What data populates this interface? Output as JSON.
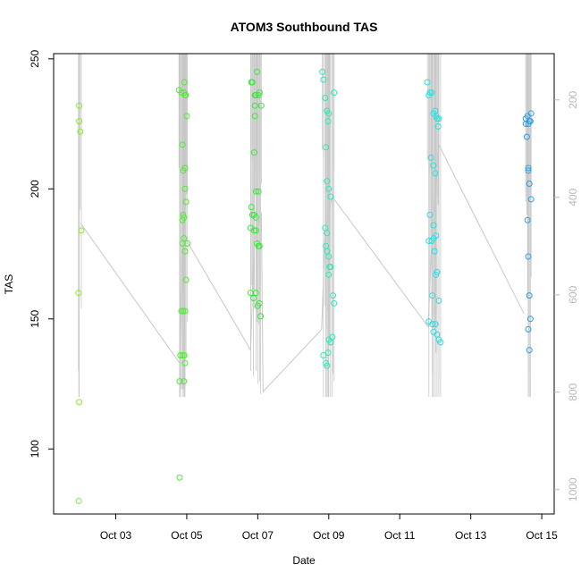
{
  "chart_data": {
    "type": "scatter",
    "title": "ATOM3 Southbound TAS",
    "xlabel": "Date",
    "ylabel": "TAS",
    "x_ticks": [
      "Oct 03",
      "Oct 05",
      "Oct 07",
      "Oct 09",
      "Oct 11",
      "Oct 13",
      "Oct 15"
    ],
    "x_tick_days": [
      3,
      5,
      7,
      9,
      11,
      13,
      15
    ],
    "xlim_days": [
      1.25,
      15.35
    ],
    "ylim": [
      75,
      252
    ],
    "y_ticks": [
      100,
      150,
      200,
      250
    ],
    "right_axis": {
      "ticks": [
        200,
        400,
        600,
        800,
        1000
      ],
      "range": [
        105,
        1050
      ],
      "inverted": true,
      "color": "#b9b9b9"
    },
    "grid": false,
    "legend": "none",
    "line_color": "#c8c8c8",
    "gradient_colors": [
      "#9be535",
      "#3ff03a",
      "#2ae8c8",
      "#2aa0e6"
    ],
    "series": [
      {
        "color": "#88ea30",
        "points": [
          [
            1.97,
            232
          ],
          [
            1.97,
            226
          ],
          [
            2.0,
            222
          ],
          [
            2.03,
            184
          ],
          [
            1.95,
            160
          ],
          [
            1.97,
            118
          ],
          [
            1.96,
            80
          ]
        ]
      },
      {
        "color": "#52ea35",
        "points": [
          [
            4.78,
            238
          ],
          [
            4.85,
            237
          ],
          [
            4.92,
            237
          ],
          [
            4.95,
            236
          ],
          [
            4.93,
            241
          ],
          [
            4.97,
            236
          ],
          [
            5.0,
            228
          ],
          [
            4.88,
            217
          ],
          [
            4.95,
            208
          ],
          [
            4.9,
            207
          ],
          [
            4.95,
            200
          ],
          [
            4.98,
            195
          ],
          [
            4.9,
            190
          ],
          [
            4.92,
            189
          ],
          [
            4.88,
            188
          ],
          [
            4.92,
            181
          ],
          [
            4.88,
            179
          ],
          [
            5.02,
            179
          ],
          [
            4.95,
            176
          ],
          [
            4.98,
            165
          ],
          [
            4.85,
            153
          ],
          [
            4.9,
            153
          ],
          [
            4.95,
            153
          ],
          [
            4.82,
            136
          ],
          [
            4.88,
            136
          ],
          [
            4.93,
            136
          ],
          [
            4.95,
            133
          ],
          [
            4.8,
            126
          ],
          [
            4.92,
            126
          ],
          [
            4.8,
            89
          ]
        ]
      },
      {
        "color": "#3ae83a",
        "points": [
          [
            6.82,
            241
          ],
          [
            6.85,
            241
          ],
          [
            6.98,
            245
          ],
          [
            6.92,
            236
          ],
          [
            6.95,
            236
          ],
          [
            7.02,
            236
          ],
          [
            7.05,
            237
          ],
          [
            7.1,
            232
          ],
          [
            6.92,
            232
          ],
          [
            6.92,
            228
          ],
          [
            6.9,
            214
          ],
          [
            6.95,
            199
          ],
          [
            7.02,
            199
          ],
          [
            6.82,
            193
          ],
          [
            6.85,
            190
          ],
          [
            6.9,
            190
          ],
          [
            6.95,
            189
          ],
          [
            6.8,
            185
          ],
          [
            6.9,
            184
          ],
          [
            6.95,
            184
          ],
          [
            6.98,
            179
          ],
          [
            7.02,
            178
          ],
          [
            7.05,
            178
          ],
          [
            6.8,
            160
          ],
          [
            6.88,
            158
          ],
          [
            6.95,
            160
          ],
          [
            7.0,
            155
          ],
          [
            7.05,
            156
          ],
          [
            7.08,
            151
          ]
        ]
      },
      {
        "color": "#2fe8b8",
        "points": [
          [
            8.82,
            245
          ],
          [
            8.85,
            242
          ],
          [
            8.9,
            235
          ],
          [
            8.95,
            230
          ],
          [
            9.0,
            229
          ],
          [
            8.98,
            226
          ],
          [
            9.15,
            237
          ],
          [
            8.92,
            216
          ],
          [
            8.95,
            203
          ],
          [
            9.0,
            200
          ],
          [
            9.05,
            197
          ],
          [
            8.9,
            185
          ],
          [
            8.95,
            183
          ],
          [
            8.92,
            178
          ],
          [
            8.95,
            176
          ],
          [
            9.0,
            174
          ],
          [
            9.02,
            170
          ],
          [
            9.05,
            170
          ],
          [
            9.0,
            167
          ],
          [
            9.12,
            159
          ],
          [
            9.15,
            156
          ],
          [
            9.0,
            142
          ],
          [
            9.05,
            141
          ],
          [
            9.1,
            143
          ],
          [
            8.98,
            137
          ],
          [
            8.85,
            136
          ],
          [
            8.92,
            133
          ],
          [
            8.95,
            132
          ]
        ]
      },
      {
        "color": "#28e0e0",
        "points": [
          [
            11.78,
            241
          ],
          [
            11.82,
            236
          ],
          [
            11.85,
            237
          ],
          [
            11.9,
            237
          ],
          [
            11.95,
            229
          ],
          [
            12.0,
            230
          ],
          [
            12.02,
            228
          ],
          [
            12.05,
            227
          ],
          [
            12.1,
            227
          ],
          [
            12.08,
            224
          ],
          [
            11.88,
            212
          ],
          [
            11.95,
            209
          ],
          [
            12.0,
            206
          ],
          [
            11.85,
            190
          ],
          [
            11.95,
            186
          ],
          [
            12.02,
            182
          ],
          [
            11.82,
            180
          ],
          [
            11.9,
            180
          ],
          [
            11.95,
            181
          ],
          [
            11.98,
            176
          ],
          [
            12.05,
            168
          ],
          [
            12.02,
            167
          ],
          [
            11.92,
            159
          ],
          [
            12.1,
            157
          ],
          [
            11.82,
            149
          ],
          [
            11.92,
            148
          ],
          [
            12.0,
            148
          ],
          [
            11.95,
            145
          ],
          [
            12.05,
            144
          ],
          [
            12.1,
            142
          ],
          [
            12.15,
            141
          ]
        ]
      },
      {
        "color": "#2aa0e6",
        "points": [
          [
            14.55,
            227
          ],
          [
            14.6,
            228
          ],
          [
            14.65,
            226
          ],
          [
            14.7,
            229
          ],
          [
            14.55,
            225
          ],
          [
            14.62,
            225
          ],
          [
            14.68,
            226
          ],
          [
            14.58,
            220
          ],
          [
            14.62,
            208
          ],
          [
            14.65,
            202
          ],
          [
            14.7,
            196
          ],
          [
            14.62,
            207
          ],
          [
            14.6,
            188
          ],
          [
            14.62,
            174
          ],
          [
            14.65,
            159
          ],
          [
            14.68,
            150
          ],
          [
            14.62,
            146
          ],
          [
            14.65,
            138
          ]
        ]
      }
    ],
    "trace_segments": [
      [
        [
          2.0,
          187
        ],
        [
          4.8,
          133
        ],
        [
          4.88,
          180
        ],
        [
          5.0,
          180
        ],
        [
          6.8,
          138
        ],
        [
          6.9,
          180
        ],
        [
          7.1,
          191
        ],
        [
          7.15,
          122
        ],
        [
          8.8,
          146
        ],
        [
          8.9,
          185
        ],
        [
          9.1,
          197
        ],
        [
          11.8,
          147
        ],
        [
          11.9,
          180
        ],
        [
          12.1,
          217
        ],
        [
          14.5,
          152
        ]
      ]
    ]
  }
}
